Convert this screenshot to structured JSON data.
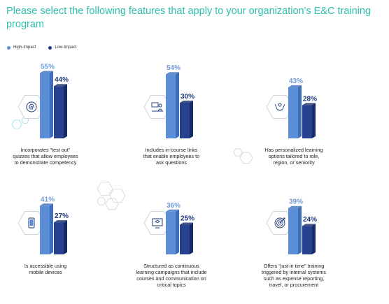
{
  "title": "Please select the following features that apply to your organization's E&C training program",
  "legend": [
    {
      "label": "High-Impact",
      "color": "#5b8ed6"
    },
    {
      "label": "Low-Impact",
      "color": "#1e3a8a"
    }
  ],
  "chart_data": {
    "type": "bar",
    "title": "Please select the following features that apply to your organization's E&C training program",
    "series": [
      {
        "name": "High-Impact",
        "values": [
          55,
          54,
          43,
          41,
          36,
          39
        ]
      },
      {
        "name": "Low-Impact",
        "values": [
          44,
          30,
          28,
          27,
          25,
          24
        ]
      }
    ],
    "categories": [
      "Incorporates \"test out\" quizzes that allow employees to demonstrate competency",
      "Includes in-course links that enable employees to ask questions",
      "Has personalized learning options tailored to role, region, or seniority",
      "Is accessible using mobile devices",
      "Structured as continuous learning campaigns that include courses and communication on critical topics",
      "Offers \"just in time\" training triggered by internal systems such as expense reporting, travel, or procurement"
    ],
    "ylim": [
      0,
      60
    ]
  },
  "panels": [
    {
      "caption": [
        "Incorporates \"test out\"",
        "quizzes that allow employees",
        "to demonstrate competency"
      ],
      "icon": "fingerprint-icon",
      "high_label": "55%",
      "low_label": "44%"
    },
    {
      "caption": [
        "Includes in-course links",
        "that enable employees to",
        "ask questions"
      ],
      "icon": "presenter-chat-icon",
      "high_label": "54%",
      "low_label": "30%"
    },
    {
      "caption": [
        "Has personalized learning",
        "options tailored to role,",
        "region, or seniority"
      ],
      "icon": "hand-person-icon",
      "high_label": "43%",
      "low_label": "28%"
    },
    {
      "caption": [
        "Is accessible using",
        "mobile devices"
      ],
      "icon": "mobile-icon",
      "high_label": "41%",
      "low_label": "27%"
    },
    {
      "caption": [
        "Structured as continuous",
        "learning campaigns that include",
        "courses and communication on",
        "critical topics"
      ],
      "icon": "monitor-graduation-icon",
      "high_label": "36%",
      "low_label": "25%"
    },
    {
      "caption": [
        "Offers \"just in time\" training",
        "triggered by internal systems",
        "such as expense reporting,",
        "travel, or procurement"
      ],
      "icon": "target-icon",
      "high_label": "39%",
      "low_label": "24%"
    }
  ],
  "colors": {
    "title": "#2bbfae",
    "high_front": "#5b8ed6",
    "high_side": "#3f6fba",
    "low_front": "#25418f",
    "low_side": "#172c66",
    "high_label": "#6f9ad8",
    "low_label": "#1e3a7a",
    "hex_stroke": "#cfd4da"
  }
}
